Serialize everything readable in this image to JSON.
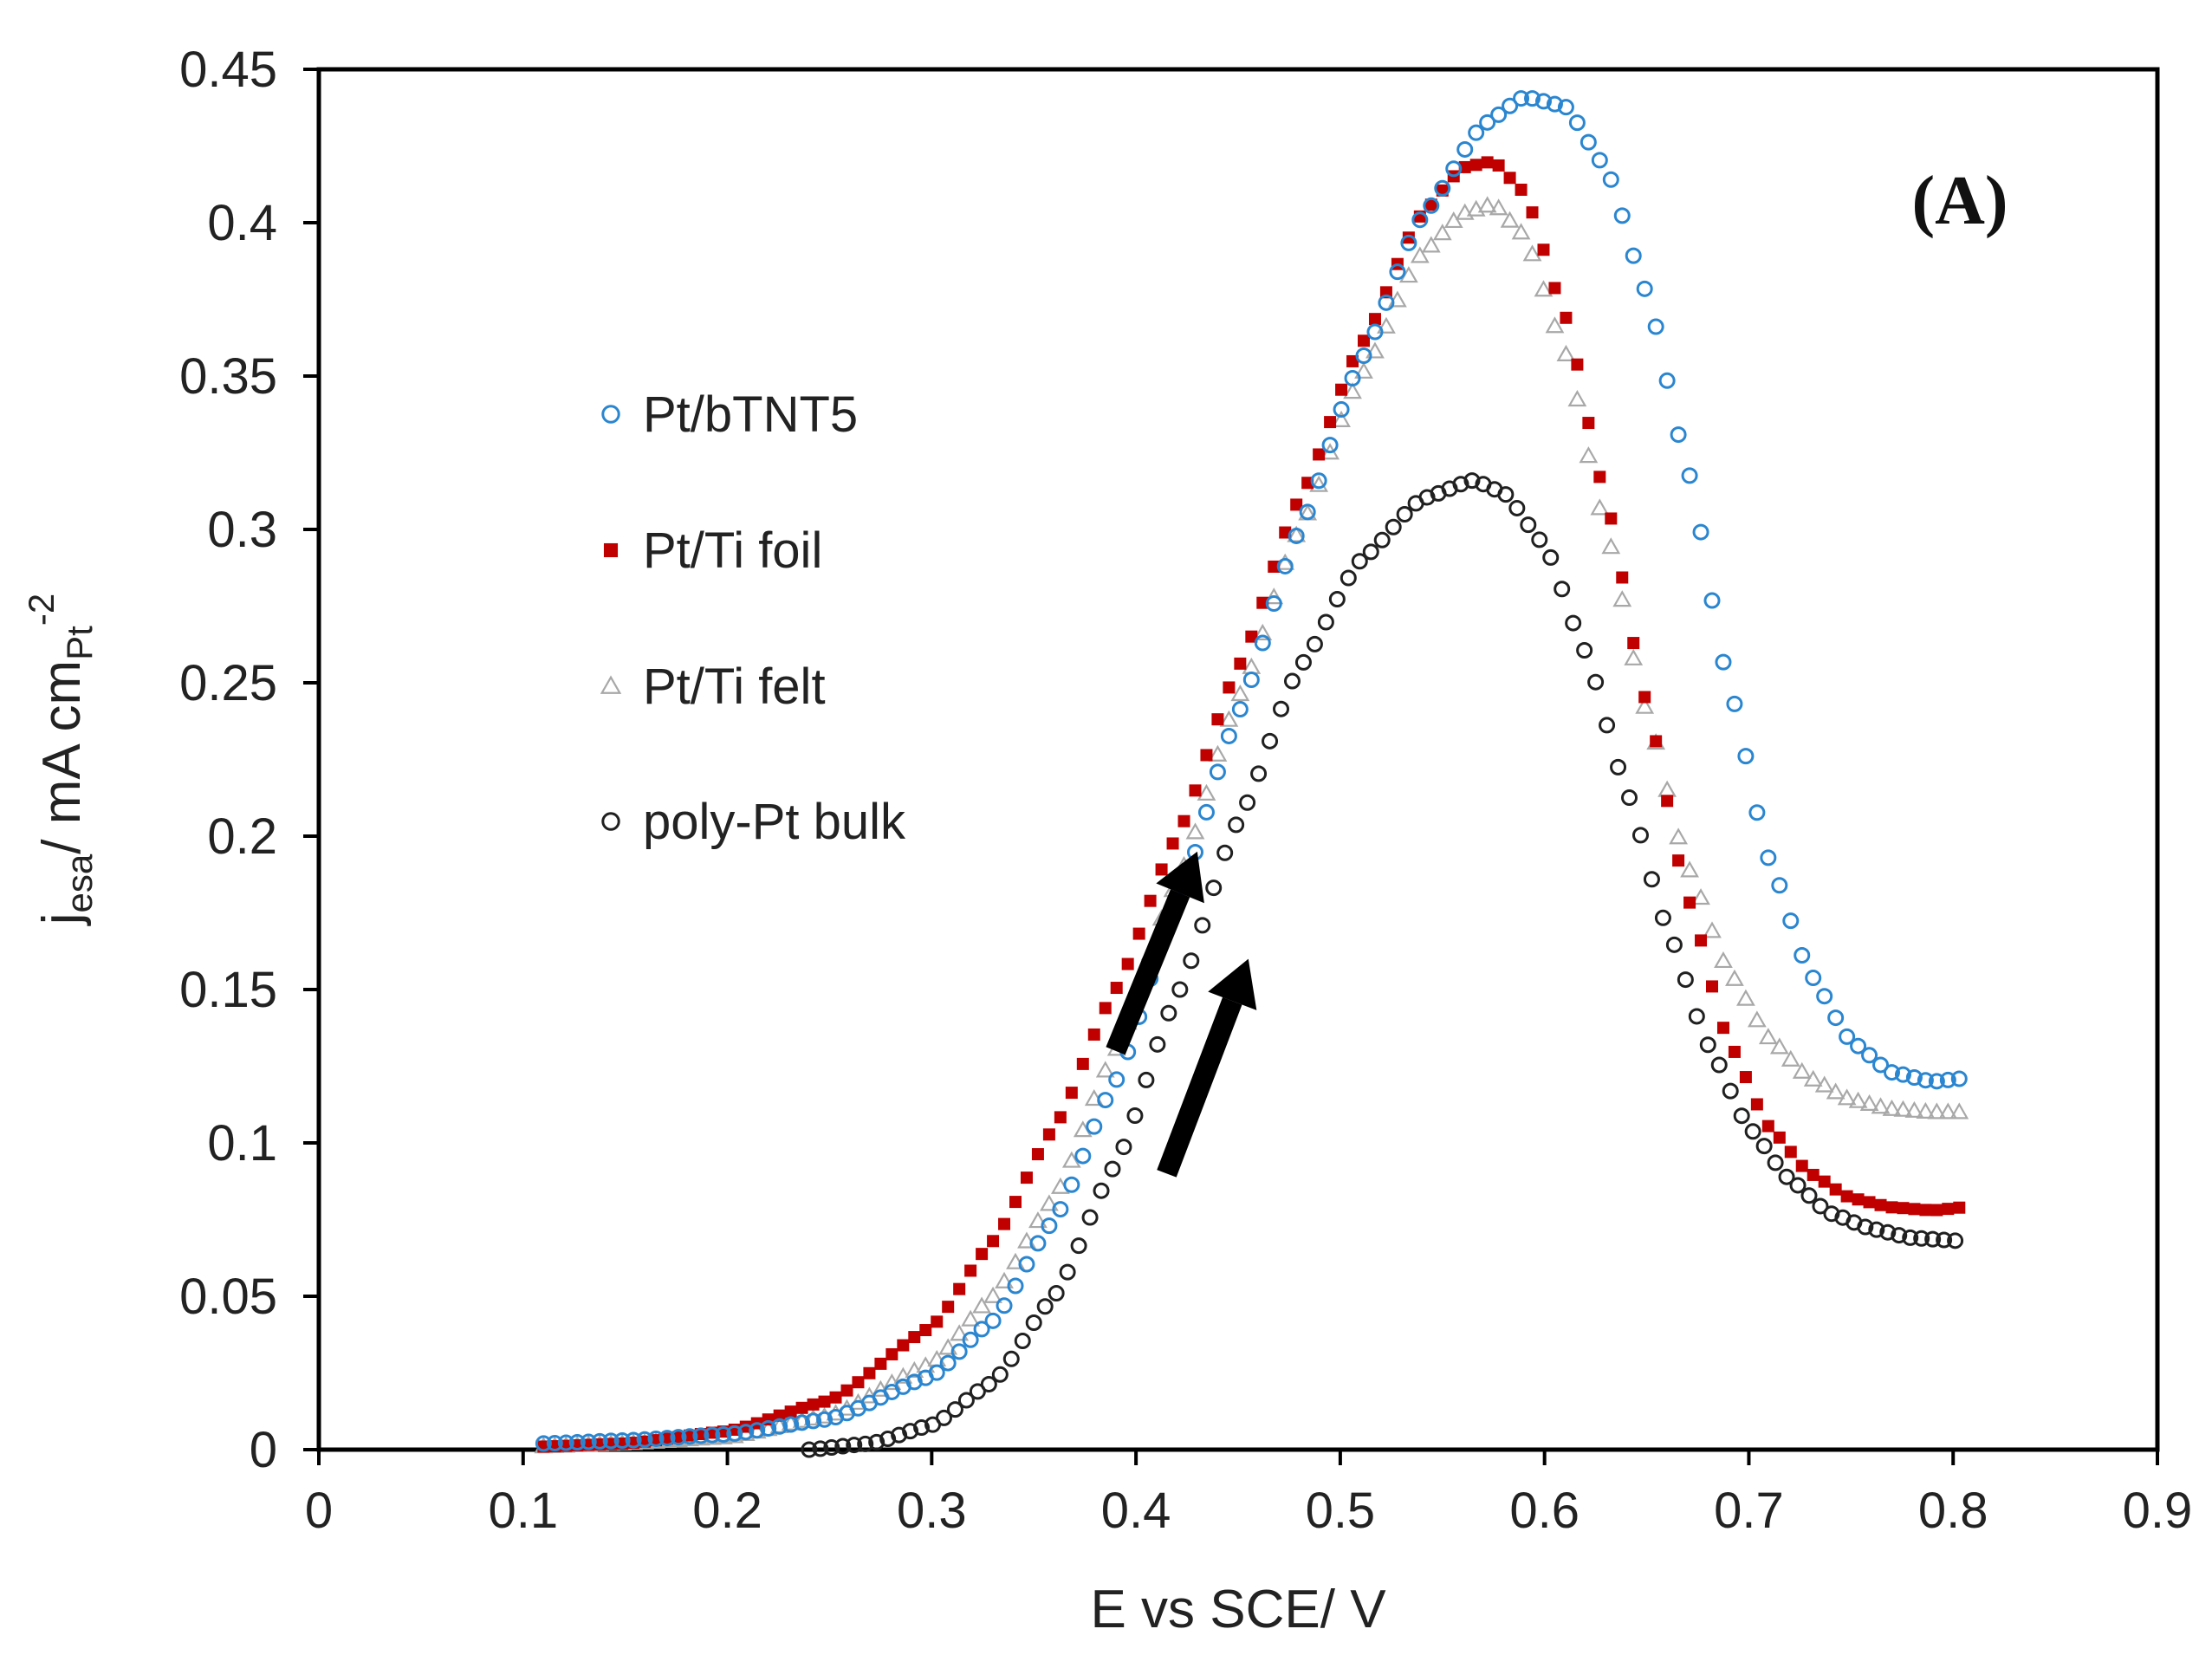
{
  "chart_data": {
    "type": "scatter",
    "title": "",
    "panel_label": "(A)",
    "xlabel": "E vs SCE/ V",
    "ylabel": {
      "main": "j",
      "sub1": "esa",
      "mid": "/ mA cm",
      "sub2": "Pt",
      "sup": "-2"
    },
    "xlim": [
      0,
      0.9
    ],
    "ylim": [
      0,
      0.45
    ],
    "x_ticks": [
      0,
      0.1,
      0.2,
      0.3,
      0.4,
      0.5,
      0.6,
      0.7,
      0.8,
      0.9
    ],
    "x_tick_labels": [
      "0",
      "0.1",
      "0.2",
      "0.3",
      "0.4",
      "0.5",
      "0.6",
      "0.7",
      "0.8",
      "0.9"
    ],
    "y_ticks": [
      0,
      0.05,
      0.1,
      0.15,
      0.2,
      0.25,
      0.3,
      0.35,
      0.4,
      0.45
    ],
    "y_tick_labels": [
      "0",
      "0.05",
      "0.1",
      "0.15",
      "0.2",
      "0.25",
      "0.3",
      "0.35",
      "0.4",
      "0.45"
    ],
    "grid": false,
    "legend_position": "center-left",
    "series": [
      {
        "name": "Pt/bTNT5",
        "marker": "open-circle",
        "color": "#2a86d0",
        "x": [
          0.11,
          0.15,
          0.2,
          0.25,
          0.3,
          0.33,
          0.36,
          0.39,
          0.42,
          0.45,
          0.48,
          0.51,
          0.54,
          0.57,
          0.59,
          0.61,
          0.63,
          0.65,
          0.67,
          0.69,
          0.71,
          0.73,
          0.75,
          0.77,
          0.79,
          0.805
        ],
        "y": [
          0.002,
          0.003,
          0.005,
          0.01,
          0.024,
          0.042,
          0.075,
          0.12,
          0.178,
          0.24,
          0.3,
          0.355,
          0.402,
          0.432,
          0.441,
          0.438,
          0.418,
          0.377,
          0.32,
          0.25,
          0.192,
          0.155,
          0.133,
          0.123,
          0.12,
          0.121
        ]
      },
      {
        "name": "Pt/Ti foil",
        "marker": "filled-square",
        "color": "#c00000",
        "x": [
          0.11,
          0.15,
          0.2,
          0.25,
          0.3,
          0.33,
          0.36,
          0.39,
          0.42,
          0.45,
          0.48,
          0.51,
          0.54,
          0.56,
          0.575,
          0.59,
          0.61,
          0.63,
          0.65,
          0.67,
          0.69,
          0.71,
          0.73,
          0.75,
          0.77,
          0.79,
          0.805
        ],
        "y": [
          0.001,
          0.002,
          0.006,
          0.016,
          0.04,
          0.068,
          0.105,
          0.15,
          0.2,
          0.255,
          0.31,
          0.36,
          0.403,
          0.418,
          0.42,
          0.41,
          0.37,
          0.31,
          0.243,
          0.18,
          0.133,
          0.105,
          0.09,
          0.082,
          0.079,
          0.078,
          0.079
        ]
      },
      {
        "name": "Pt/Ti felt",
        "marker": "open-triangle",
        "color": "#a8a8a8",
        "x": [
          0.11,
          0.15,
          0.2,
          0.25,
          0.3,
          0.33,
          0.36,
          0.39,
          0.42,
          0.45,
          0.48,
          0.51,
          0.54,
          0.56,
          0.575,
          0.59,
          0.61,
          0.63,
          0.65,
          0.67,
          0.69,
          0.71,
          0.73,
          0.75,
          0.77,
          0.79,
          0.805
        ],
        "y": [
          0.001,
          0.002,
          0.004,
          0.011,
          0.028,
          0.05,
          0.082,
          0.13,
          0.185,
          0.245,
          0.3,
          0.35,
          0.39,
          0.403,
          0.406,
          0.396,
          0.358,
          0.3,
          0.24,
          0.19,
          0.156,
          0.134,
          0.121,
          0.114,
          0.111,
          0.11,
          0.11
        ]
      },
      {
        "name": "poly-Pt bulk",
        "marker": "open-circle",
        "color": "#202020",
        "x": [
          0.24,
          0.27,
          0.3,
          0.33,
          0.36,
          0.39,
          0.42,
          0.45,
          0.48,
          0.51,
          0.54,
          0.565,
          0.58,
          0.6,
          0.62,
          0.64,
          0.66,
          0.68,
          0.7,
          0.72,
          0.74,
          0.76,
          0.78,
          0.805
        ],
        "y": [
          0.0,
          0.002,
          0.008,
          0.022,
          0.05,
          0.093,
          0.148,
          0.205,
          0.255,
          0.29,
          0.31,
          0.316,
          0.312,
          0.295,
          0.26,
          0.215,
          0.17,
          0.132,
          0.105,
          0.088,
          0.077,
          0.072,
          0.069,
          0.068
        ]
      }
    ],
    "annotations": [
      {
        "type": "arrow",
        "from": [
          0.39,
          0.13
        ],
        "to": [
          0.43,
          0.195
        ]
      },
      {
        "type": "arrow",
        "from": [
          0.415,
          0.09
        ],
        "to": [
          0.455,
          0.16
        ]
      }
    ]
  }
}
